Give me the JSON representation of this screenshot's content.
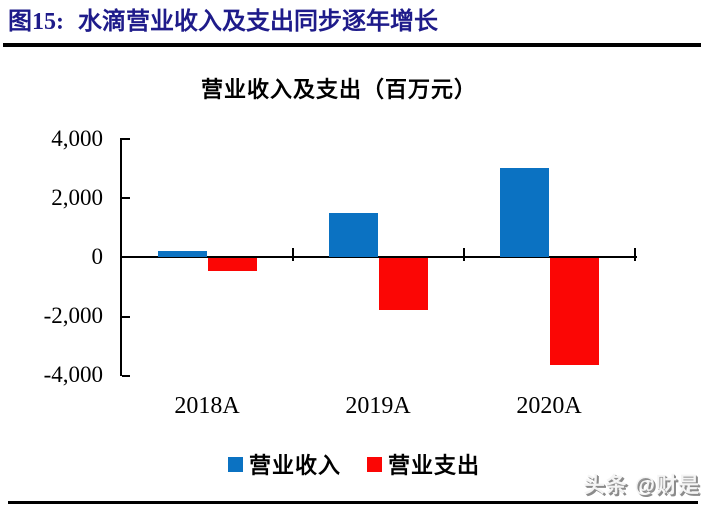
{
  "page": {
    "figure_label": "图15:",
    "figure_title": "水滴营业收入及支出同步逐年增长",
    "watermark": "头条 @财是"
  },
  "colors": {
    "header_navy": "#1e1b8a",
    "revenue_blue": "#0b72c2",
    "expense_red": "#fb0605",
    "axis_black": "#000000"
  },
  "chart_data": {
    "type": "bar",
    "title": "营业收入及支出（百万元）",
    "categories": [
      "2018A",
      "2019A",
      "2020A"
    ],
    "series": [
      {
        "name": "营业收入",
        "color": "#0b72c2",
        "values": [
          200,
          1500,
          3000
        ]
      },
      {
        "name": "营业支出",
        "color": "#fb0605",
        "values": [
          -450,
          -1750,
          -3600
        ]
      }
    ],
    "xlabel": "",
    "ylabel": "",
    "ylim": [
      -4000,
      4000
    ],
    "ytick_values": [
      4000,
      2000,
      0,
      -2000,
      -4000
    ],
    "ytick_labels": [
      "4,000",
      "2,000",
      "0",
      "-2,000",
      "-4,000"
    ],
    "grid": false,
    "legend_position": "bottom"
  }
}
